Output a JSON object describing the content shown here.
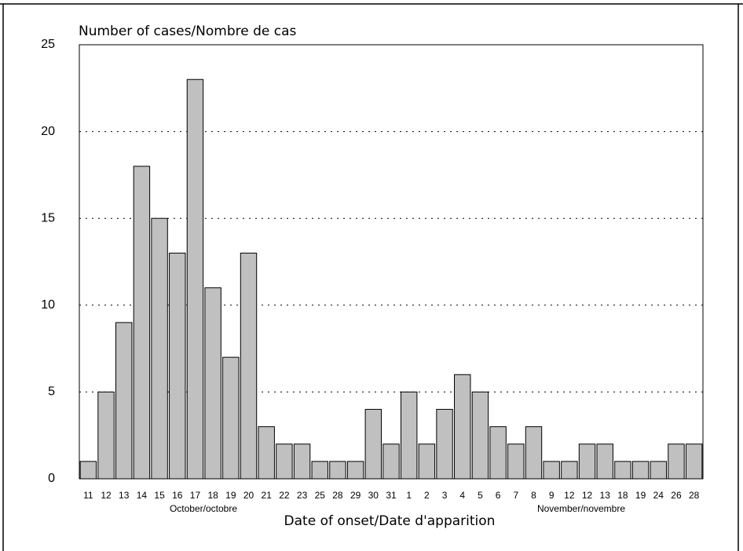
{
  "chart_data": {
    "type": "bar",
    "ylabel": "Number of cases/Nombre de cas",
    "xlabel": "Date of onset/Date d'apparition",
    "group_labels": [
      "October/octobre",
      "November/novembre"
    ],
    "categories": [
      "11",
      "12",
      "13",
      "14",
      "15",
      "16",
      "17",
      "18",
      "19",
      "20",
      "21",
      "22",
      "23",
      "25",
      "28",
      "29",
      "30",
      "31",
      "1",
      "2",
      "3",
      "4",
      "5",
      "6",
      "7",
      "8",
      "9",
      "12",
      "12",
      "13",
      "18",
      "19",
      "24",
      "26",
      "28"
    ],
    "values": [
      1,
      5,
      9,
      18,
      15,
      13,
      23,
      11,
      7,
      13,
      3,
      2,
      2,
      1,
      1,
      1,
      4,
      2,
      5,
      2,
      4,
      6,
      5,
      3,
      2,
      3,
      1,
      1,
      2,
      2,
      1,
      1,
      1,
      2,
      2
    ],
    "color": "#c0c0c0",
    "ylim": [
      0,
      25
    ],
    "yticks": [
      0,
      5,
      10,
      15,
      20,
      25
    ],
    "grid": true
  }
}
